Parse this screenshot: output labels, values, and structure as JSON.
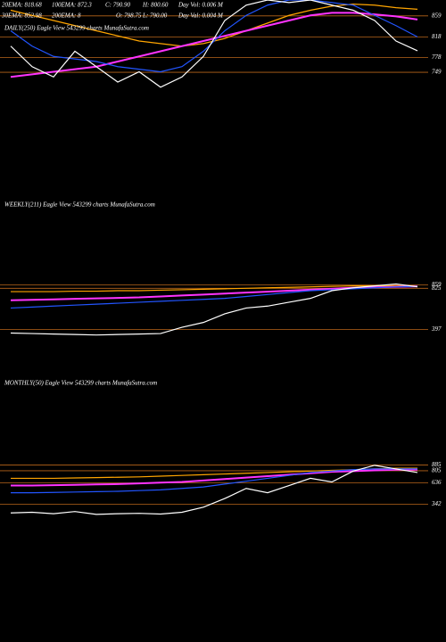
{
  "chart_data": [
    {
      "type": "line",
      "title": "DAILY(250) Eagle  View  543299 charts MunafaSutra.com",
      "annotations": [
        "20EMA: 818.68",
        "100EMA: 872.3",
        "C: 790.90",
        "H: 800.60",
        "Day Vol: 0.006 M",
        "30EMA: 852.98",
        "200EMA: 8",
        "O: 798.75",
        "L: 790.00",
        "Day Val: 0.004 M"
      ],
      "categories": [
        null,
        null,
        null,
        null,
        null,
        null,
        null,
        null,
        null,
        null,
        null,
        null,
        null,
        null,
        null,
        null,
        null,
        null,
        null,
        null
      ],
      "series": [
        {
          "color": "#ffa500",
          "values": [
            870,
            860,
            850,
            840,
            830,
            820,
            810,
            805,
            800,
            805,
            815,
            830,
            845,
            860,
            870,
            878,
            882,
            880,
            875,
            872
          ]
        },
        {
          "color": "#ff33ff",
          "values": [
            740,
            745,
            750,
            755,
            760,
            770,
            780,
            790,
            800,
            810,
            820,
            830,
            840,
            850,
            860,
            865,
            865,
            862,
            858,
            852
          ]
        },
        {
          "color": "#2255ff",
          "values": [
            830,
            800,
            780,
            775,
            770,
            760,
            755,
            750,
            760,
            790,
            830,
            860,
            880,
            890,
            890,
            885,
            880,
            860,
            840,
            818
          ]
        },
        {
          "color": "#ffffff",
          "values": [
            800,
            760,
            740,
            790,
            760,
            730,
            750,
            720,
            740,
            780,
            850,
            880,
            890,
            885,
            890,
            880,
            870,
            850,
            810,
            791
          ]
        }
      ],
      "ylim": [
        690,
        890
      ],
      "yticks": [
        859,
        818,
        778,
        749
      ],
      "grid": true,
      "grid_color": "#b8651a"
    },
    {
      "type": "line",
      "title": "WEEKLY(211) Eagle  View  543299 charts MunafaSutra.com",
      "categories": [
        null,
        null,
        null,
        null,
        null,
        null,
        null,
        null,
        null,
        null,
        null,
        null,
        null,
        null,
        null,
        null,
        null,
        null,
        null,
        null
      ],
      "series": [
        {
          "color": "#ffa500",
          "values": [
            790,
            790,
            790,
            795,
            795,
            800,
            800,
            805,
            810,
            815,
            820,
            825,
            830,
            835,
            840,
            845,
            850,
            850,
            850,
            850
          ]
        },
        {
          "color": "#ff33ff",
          "values": [
            700,
            705,
            710,
            715,
            720,
            725,
            730,
            740,
            750,
            760,
            770,
            780,
            790,
            800,
            810,
            820,
            830,
            835,
            840,
            845
          ]
        },
        {
          "color": "#2255ff",
          "values": [
            620,
            630,
            640,
            650,
            660,
            670,
            680,
            690,
            700,
            710,
            720,
            740,
            760,
            780,
            800,
            810,
            820,
            830,
            840,
            845
          ]
        },
        {
          "color": "#ffffff",
          "values": [
            360,
            355,
            350,
            345,
            340,
            345,
            350,
            355,
            420,
            470,
            560,
            620,
            640,
            680,
            720,
            800,
            830,
            850,
            870,
            840
          ]
        }
      ],
      "ylim": [
        300,
        1050
      ],
      "yticks": [
        859,
        825,
        397
      ],
      "grid": true,
      "grid_color": "#b8651a"
    },
    {
      "type": "line",
      "title": "MONTHLY(50) Eagle  View  543299 charts MunafaSutra.com",
      "categories": [
        null,
        null,
        null,
        null,
        null,
        null,
        null,
        null,
        null,
        null,
        null,
        null,
        null,
        null,
        null,
        null,
        null,
        null,
        null,
        null
      ],
      "series": [
        {
          "color": "#ffa500",
          "values": [
            700,
            700,
            700,
            705,
            710,
            715,
            720,
            730,
            740,
            750,
            760,
            770,
            780,
            790,
            800,
            810,
            820,
            830,
            840,
            840
          ]
        },
        {
          "color": "#ff33ff",
          "values": [
            600,
            600,
            605,
            610,
            615,
            620,
            630,
            640,
            650,
            670,
            690,
            710,
            730,
            750,
            770,
            790,
            800,
            810,
            820,
            820
          ]
        },
        {
          "color": "#2255ff",
          "values": [
            500,
            500,
            505,
            510,
            515,
            520,
            530,
            540,
            560,
            580,
            620,
            660,
            700,
            740,
            780,
            800,
            820,
            830,
            830,
            830
          ]
        },
        {
          "color": "#ffffff",
          "values": [
            220,
            230,
            210,
            240,
            200,
            210,
            215,
            205,
            230,
            300,
            420,
            560,
            500,
            600,
            700,
            650,
            800,
            880,
            830,
            780
          ]
        }
      ],
      "ylim": [
        100,
        1150
      ],
      "yticks": [
        885,
        805,
        636,
        342
      ],
      "grid": true,
      "grid_color": "#b8651a"
    }
  ]
}
